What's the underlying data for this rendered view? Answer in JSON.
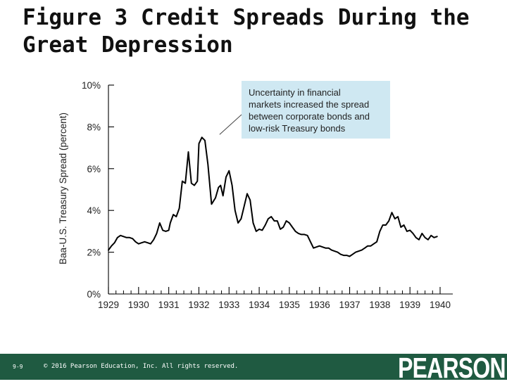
{
  "slide": {
    "title_line1": "Figure 3 Credit Spreads During the",
    "title_line2": "Great Depression"
  },
  "footer": {
    "slide_number": "9-9",
    "copyright": "© 2016 Pearson Education, Inc. All rights reserved.",
    "logo": "PEARSON",
    "background_color": "#1f5a41"
  },
  "chart_data": {
    "type": "line",
    "title": "",
    "xlabel": "",
    "ylabel": "Baa-U.S. Treasury Spread (percent)",
    "xlim": [
      1929,
      1940
    ],
    "ylim": [
      0,
      10
    ],
    "x_ticks": [
      "1929",
      "1930",
      "1931",
      "1932",
      "1933",
      "1934",
      "1935",
      "1936",
      "1937",
      "1938",
      "1939",
      "1940"
    ],
    "y_ticks": [
      "0%",
      "2%",
      "4%",
      "6%",
      "8%",
      "10%"
    ],
    "grid": false,
    "line_color": "#000000",
    "annotation": {
      "text": [
        "Uncertainty in financial",
        "markets increased the spread",
        "between corporate bonds and",
        "low-risk Treasury bonds"
      ],
      "box_color": "#cfe8f2",
      "points_to": [
        1932.5,
        7.5
      ]
    },
    "series": [
      {
        "x": [
          1929.0,
          1929.1,
          1929.2,
          1929.3,
          1929.4,
          1929.5,
          1929.6,
          1929.7,
          1929.8,
          1929.9,
          1930.0,
          1930.1,
          1930.2,
          1930.3,
          1930.4,
          1930.5,
          1930.6,
          1930.7,
          1930.8,
          1930.9,
          1931.0,
          1931.05,
          1931.15,
          1931.25,
          1931.35,
          1931.45,
          1931.55,
          1931.65,
          1931.75,
          1931.85,
          1931.95,
          1932.0,
          1932.1,
          1932.2,
          1932.3,
          1932.42,
          1932.55,
          1932.65,
          1932.72,
          1932.8,
          1932.9,
          1933.0,
          1933.1,
          1933.2,
          1933.3,
          1933.4,
          1933.5,
          1933.6,
          1933.7,
          1933.8,
          1933.9,
          1934.0,
          1934.1,
          1934.2,
          1934.3,
          1934.4,
          1934.5,
          1934.6,
          1934.7,
          1934.8,
          1934.9,
          1935.0,
          1935.1,
          1935.2,
          1935.3,
          1935.4,
          1935.5,
          1935.6,
          1935.7,
          1935.8,
          1935.9,
          1936.0,
          1936.1,
          1936.2,
          1936.3,
          1936.4,
          1936.5,
          1936.6,
          1936.7,
          1936.8,
          1936.9,
          1937.0,
          1937.1,
          1937.2,
          1937.3,
          1937.4,
          1937.5,
          1937.6,
          1937.7,
          1937.8,
          1937.9,
          1938.0,
          1938.1,
          1938.2,
          1938.3,
          1938.4,
          1938.5,
          1938.6,
          1938.7,
          1938.8,
          1938.9,
          1939.0,
          1939.1,
          1939.2,
          1939.3,
          1939.4,
          1939.5,
          1939.6,
          1939.7,
          1939.8,
          1939.9
        ],
        "values": [
          2.1,
          2.3,
          2.45,
          2.7,
          2.8,
          2.75,
          2.7,
          2.7,
          2.65,
          2.5,
          2.4,
          2.45,
          2.5,
          2.45,
          2.4,
          2.6,
          2.9,
          3.4,
          3.05,
          3.0,
          3.05,
          3.4,
          3.8,
          3.7,
          4.1,
          5.4,
          5.3,
          6.8,
          5.3,
          5.2,
          5.4,
          7.2,
          7.5,
          7.35,
          6.2,
          4.3,
          4.6,
          5.1,
          5.2,
          4.7,
          5.6,
          5.9,
          5.2,
          4.0,
          3.4,
          3.6,
          4.2,
          4.8,
          4.5,
          3.4,
          3.0,
          3.1,
          3.05,
          3.3,
          3.6,
          3.7,
          3.5,
          3.5,
          3.1,
          3.2,
          3.5,
          3.4,
          3.2,
          3.0,
          2.9,
          2.85,
          2.85,
          2.8,
          2.5,
          2.2,
          2.25,
          2.3,
          2.25,
          2.2,
          2.2,
          2.1,
          2.05,
          2.0,
          1.9,
          1.85,
          1.85,
          1.8,
          1.9,
          2.0,
          2.05,
          2.1,
          2.2,
          2.3,
          2.3,
          2.4,
          2.5,
          3.0,
          3.3,
          3.3,
          3.5,
          3.9,
          3.6,
          3.7,
          3.2,
          3.3,
          3.0,
          3.05,
          2.9,
          2.7,
          2.6,
          2.9,
          2.7,
          2.6,
          2.8,
          2.7,
          2.75
        ]
      }
    ]
  }
}
